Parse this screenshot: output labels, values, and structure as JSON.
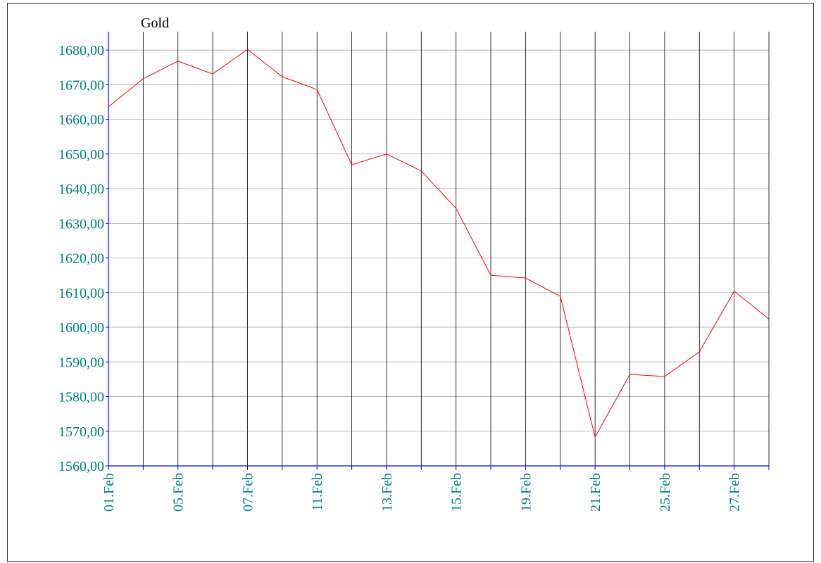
{
  "chart_data": {
    "type": "line",
    "title": "Gold",
    "categories": [
      "01.Feb",
      null,
      "05.Feb",
      null,
      "07.Feb",
      null,
      "11.Feb",
      null,
      "13.Feb",
      null,
      "15.Feb",
      null,
      "19.Feb",
      null,
      "21.Feb",
      null,
      "25.Feb",
      null,
      "27.Feb",
      null
    ],
    "series": [
      {
        "name": "Gold",
        "color": "#ff0000",
        "values": [
          1663.6,
          1671.7,
          1676.8,
          1673.1,
          1680.2,
          1672.3,
          1668.6,
          1646.9,
          1650.0,
          1645.1,
          1634.3,
          1615.0,
          1614.2,
          1608.9,
          1568.3,
          1586.4,
          1585.8,
          1592.9,
          1610.4,
          1602.4
        ]
      }
    ],
    "ylim": [
      1560,
      1685.3
    ],
    "yticks": [
      {
        "value": 1560,
        "label": "1560,00"
      },
      {
        "value": 1570,
        "label": "1570,00"
      },
      {
        "value": 1580,
        "label": "1580,00"
      },
      {
        "value": 1590,
        "label": "1590,00"
      },
      {
        "value": 1600,
        "label": "1600,00"
      },
      {
        "value": 1610,
        "label": "1610,00"
      },
      {
        "value": 1620,
        "label": "1620,00"
      },
      {
        "value": 1630,
        "label": "1630,00"
      },
      {
        "value": 1640,
        "label": "1640,00"
      },
      {
        "value": 1650,
        "label": "1650,00"
      },
      {
        "value": 1660,
        "label": "1660,00"
      },
      {
        "value": 1670,
        "label": "1670,00"
      },
      {
        "value": 1680,
        "label": "1680,00"
      }
    ],
    "grid": true
  }
}
